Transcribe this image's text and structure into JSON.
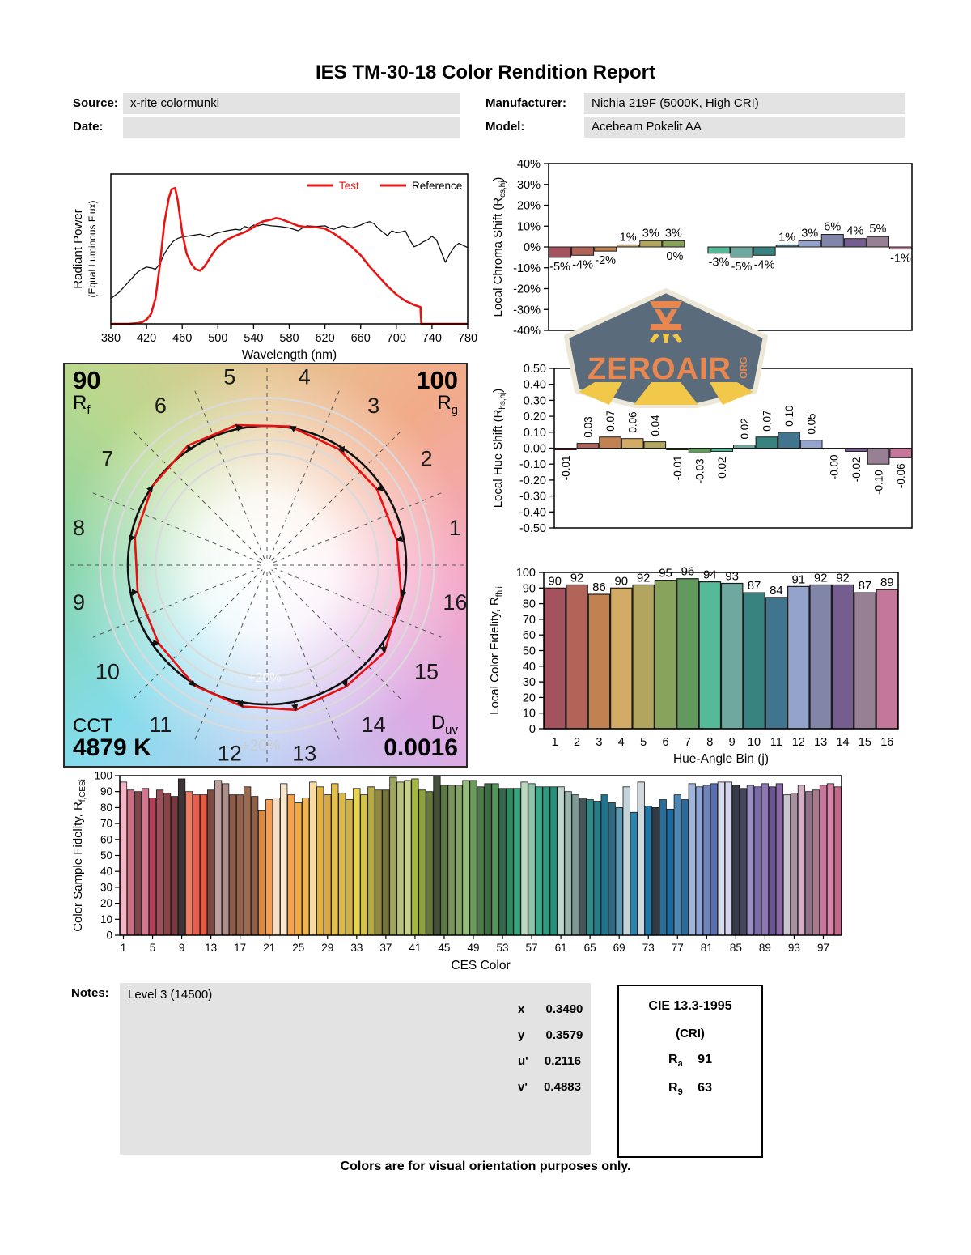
{
  "report": {
    "title": "IES TM-30-18 Color Rendition Report",
    "source_label": "Source:",
    "source_value": "x-rite colormunki",
    "date_label": "Date:",
    "date_value": "",
    "manufacturer_label": "Manufacturer:",
    "manufacturer_value": "Nichia 219F (5000K, High CRI)",
    "model_label": "Model:",
    "model_value": "Acebeam Pokelit AA",
    "notes_label": "Notes:",
    "notes_value": "Level 3 (14500)",
    "footer": "Colors are for visual orientation purposes only."
  },
  "watermark": {
    "name": "ZEROAIR",
    "suffix": "ORG",
    "badge_bg": "#5a6b7c",
    "text_color": "#e8874f",
    "ray_color": "#f2c84b",
    "border_color": "#ece7d6"
  },
  "chromaticity": {
    "rows": [
      {
        "label": "x",
        "value": "0.3490"
      },
      {
        "label": "y",
        "value": "0.3579"
      },
      {
        "label": "u'",
        "value": "0.2116"
      },
      {
        "label": "v'",
        "value": "0.4883"
      }
    ]
  },
  "cie_box": {
    "title": "CIE 13.3-1995",
    "subtitle": "(CRI)",
    "ra_label": "R",
    "ra_sub": "a",
    "ra_value": "91",
    "r9_label": "R",
    "r9_sub": "9",
    "r9_value": "63"
  },
  "bin_colors": [
    "#a4525e",
    "#b16457",
    "#c28150",
    "#d2ab66",
    "#b2a55f",
    "#87a35c",
    "#629a5e",
    "#55ba97",
    "#6fa89f",
    "#38827f",
    "#41748e",
    "#94a3cb",
    "#8185a8",
    "#765d90",
    "#977f94",
    "#c47799"
  ],
  "chart_data": [
    {
      "id": "spd",
      "type": "line",
      "xlabel": "Wavelength (nm)",
      "ylabel": "Radiant Power",
      "ylabel2": "(Equal Luminous Flux)",
      "xlim": [
        380,
        780
      ],
      "xticks": [
        380,
        420,
        460,
        500,
        540,
        580,
        620,
        660,
        700,
        740,
        780
      ],
      "legend_color_test": "#e81313",
      "legend_color_ref_text": "#000000",
      "series": [
        {
          "name": "Reference",
          "color": "#111111",
          "width": 1.3,
          "points": [
            [
              380,
              0.18
            ],
            [
              390,
              0.23
            ],
            [
              400,
              0.3
            ],
            [
              410,
              0.37
            ],
            [
              415,
              0.39
            ],
            [
              420,
              0.405
            ],
            [
              425,
              0.4
            ],
            [
              430,
              0.39
            ],
            [
              435,
              0.43
            ],
            [
              440,
              0.5
            ],
            [
              445,
              0.55
            ],
            [
              450,
              0.59
            ],
            [
              455,
              0.61
            ],
            [
              460,
              0.62
            ],
            [
              470,
              0.63
            ],
            [
              480,
              0.64
            ],
            [
              485,
              0.63
            ],
            [
              490,
              0.62
            ],
            [
              495,
              0.64
            ],
            [
              500,
              0.65
            ],
            [
              510,
              0.665
            ],
            [
              520,
              0.675
            ],
            [
              525,
              0.67
            ],
            [
              530,
              0.695
            ],
            [
              535,
              0.685
            ],
            [
              540,
              0.705
            ],
            [
              545,
              0.7
            ],
            [
              550,
              0.71
            ],
            [
              555,
              0.705
            ],
            [
              560,
              0.7
            ],
            [
              570,
              0.695
            ],
            [
              580,
              0.685
            ],
            [
              585,
              0.675
            ],
            [
              590,
              0.665
            ],
            [
              595,
              0.685
            ],
            [
              600,
              0.7
            ],
            [
              610,
              0.695
            ],
            [
              620,
              0.7
            ],
            [
              625,
              0.685
            ],
            [
              630,
              0.675
            ],
            [
              635,
              0.69
            ],
            [
              640,
              0.7
            ],
            [
              645,
              0.69
            ],
            [
              650,
              0.685
            ],
            [
              655,
              0.695
            ],
            [
              660,
              0.705
            ],
            [
              665,
              0.72
            ],
            [
              670,
              0.73
            ],
            [
              675,
              0.715
            ],
            [
              680,
              0.68
            ],
            [
              685,
              0.655
            ],
            [
              690,
              0.63
            ],
            [
              695,
              0.665
            ],
            [
              700,
              0.65
            ],
            [
              705,
              0.655
            ],
            [
              710,
              0.665
            ],
            [
              715,
              0.6
            ],
            [
              720,
              0.55
            ],
            [
              725,
              0.565
            ],
            [
              730,
              0.585
            ],
            [
              735,
              0.6
            ],
            [
              740,
              0.625
            ],
            [
              745,
              0.6
            ],
            [
              750,
              0.52
            ],
            [
              755,
              0.44
            ],
            [
              760,
              0.5
            ],
            [
              765,
              0.55
            ],
            [
              770,
              0.575
            ],
            [
              775,
              0.56
            ],
            [
              780,
              0.545
            ]
          ]
        },
        {
          "name": "Test",
          "color": "#e81313",
          "width": 2.6,
          "points": [
            [
              380,
              0
            ],
            [
              400,
              0
            ],
            [
              410,
              0.005
            ],
            [
              415,
              0.012
            ],
            [
              420,
              0.03
            ],
            [
              425,
              0.07
            ],
            [
              430,
              0.18
            ],
            [
              435,
              0.42
            ],
            [
              440,
              0.72
            ],
            [
              445,
              0.9
            ],
            [
              448,
              0.96
            ],
            [
              452,
              0.97
            ],
            [
              455,
              0.88
            ],
            [
              460,
              0.65
            ],
            [
              465,
              0.5
            ],
            [
              470,
              0.43
            ],
            [
              475,
              0.39
            ],
            [
              480,
              0.38
            ],
            [
              485,
              0.41
            ],
            [
              490,
              0.46
            ],
            [
              495,
              0.51
            ],
            [
              500,
              0.55
            ],
            [
              510,
              0.6
            ],
            [
              520,
              0.63
            ],
            [
              530,
              0.655
            ],
            [
              540,
              0.69
            ],
            [
              545,
              0.715
            ],
            [
              550,
              0.73
            ],
            [
              560,
              0.745
            ],
            [
              565,
              0.755
            ],
            [
              570,
              0.75
            ],
            [
              580,
              0.725
            ],
            [
              590,
              0.7
            ],
            [
              600,
              0.69
            ],
            [
              610,
              0.69
            ],
            [
              620,
              0.68
            ],
            [
              630,
              0.645
            ],
            [
              640,
              0.6
            ],
            [
              650,
              0.55
            ],
            [
              660,
              0.49
            ],
            [
              670,
              0.41
            ],
            [
              680,
              0.34
            ],
            [
              690,
              0.27
            ],
            [
              700,
              0.21
            ],
            [
              710,
              0.165
            ],
            [
              720,
              0.135
            ],
            [
              727,
              0.12
            ],
            [
              728,
              0
            ],
            [
              780,
              0
            ]
          ]
        }
      ]
    },
    {
      "id": "chroma_shift",
      "type": "bar",
      "ylabel_parts": {
        "pre": "Local Chroma Shift (R",
        "sub": "cs,hj",
        "post": ")"
      },
      "ylim": [
        -40,
        40
      ],
      "ytick_step": 10,
      "values_pct": [
        -5,
        -4,
        -2,
        1,
        3,
        3,
        0,
        -3,
        -5,
        -4,
        1,
        3,
        6,
        4,
        5,
        -1
      ],
      "labels": [
        "-5%",
        "-4%",
        "-2%",
        "1%",
        "3%",
        "3%",
        "0%",
        "-3%",
        "-5%",
        "-4%",
        "1%",
        "3%",
        "6%",
        "4%",
        "5%",
        "-1%"
      ]
    },
    {
      "id": "hue_shift",
      "type": "bar",
      "ylabel_parts": {
        "pre": "Local Hue Shift (R",
        "sub": "hs,hj",
        "post": ")"
      },
      "ylim": [
        -0.5,
        0.5
      ],
      "ytick_step": 0.1,
      "values": [
        -0.01,
        0.03,
        0.07,
        0.06,
        0.04,
        -0.01,
        -0.03,
        -0.02,
        0.02,
        0.07,
        0.1,
        0.05,
        -0.005,
        -0.02,
        -0.1,
        -0.06
      ],
      "labels": [
        "-0.01",
        "0.03",
        "0.07",
        "0.06",
        "0.04",
        "-0.01",
        "-0.03",
        "-0.02",
        "0.02",
        "0.07",
        "0.10",
        "0.05",
        "-0.00",
        "-0.02",
        "-0.10",
        "-0.06"
      ]
    },
    {
      "id": "local_fidelity",
      "type": "bar",
      "ylabel_parts": {
        "pre": "Local Color Fidelity, R",
        "sub": "fh,i",
        "post": ""
      },
      "xlabel": "Hue-Angle Bin (j)",
      "ylim": [
        0,
        100
      ],
      "ytick_step": 10,
      "categories": [
        1,
        2,
        3,
        4,
        5,
        6,
        7,
        8,
        9,
        10,
        11,
        12,
        13,
        14,
        15,
        16
      ],
      "values": [
        90,
        92,
        86,
        90,
        92,
        95,
        96,
        94,
        93,
        87,
        84,
        91,
        92,
        92,
        87,
        89
      ]
    },
    {
      "id": "cvg",
      "type": "color_vector_graphic",
      "rf": "90",
      "rf_label": "R",
      "rf_sub": "f",
      "rg": "100",
      "rg_label": "R",
      "rg_sub": "g",
      "cct_label": "CCT",
      "cct": "4879 K",
      "duv_label": "D",
      "duv_sub": "uv",
      "duv": "0.0016",
      "ring_labels": [
        "+20%",
        "+20%"
      ],
      "bin_numbers": [
        1,
        2,
        3,
        4,
        5,
        6,
        7,
        8,
        9,
        10,
        11,
        12,
        13,
        14,
        15,
        16
      ],
      "chroma_shift_pct": [
        -5,
        -4,
        -2,
        1,
        3,
        3,
        0,
        -3,
        -5,
        -4,
        1,
        3,
        6,
        4,
        5,
        -1
      ],
      "hue_shift": [
        -0.01,
        0.03,
        0.07,
        0.06,
        0.04,
        -0.01,
        -0.03,
        -0.02,
        0.02,
        0.07,
        0.1,
        0.05,
        0,
        -0.02,
        -0.1,
        -0.06
      ]
    },
    {
      "id": "ces",
      "type": "bar",
      "ylabel_parts": {
        "pre": "Color Sample Fidelity, R",
        "sub": "f,CESi",
        "post": ""
      },
      "xlabel": "CES Color",
      "ylim": [
        0,
        100
      ],
      "ytick_step": 10,
      "xtick_labels": [
        1,
        5,
        9,
        13,
        17,
        21,
        25,
        29,
        33,
        37,
        41,
        45,
        49,
        53,
        57,
        61,
        65,
        69,
        73,
        77,
        81,
        85,
        89,
        93,
        97
      ],
      "values": [
        96,
        91,
        90,
        92,
        86,
        91,
        89,
        87,
        98,
        90,
        88,
        88,
        91,
        97,
        95,
        88,
        88,
        93,
        87,
        78,
        85,
        86,
        95,
        88,
        83,
        86,
        96,
        93,
        88,
        95,
        89,
        85,
        92,
        88,
        93,
        91,
        91,
        99,
        96,
        97,
        98,
        91,
        90,
        100,
        94,
        94,
        94,
        97,
        97,
        93,
        95,
        95,
        92,
        92,
        92,
        96,
        95,
        93,
        93,
        93,
        93,
        90,
        88,
        86,
        85,
        84,
        88,
        83,
        80,
        93,
        77,
        96,
        81,
        80,
        85,
        79,
        88,
        85,
        95,
        93,
        94,
        95,
        96,
        96,
        94,
        92,
        94,
        93,
        95,
        93,
        95,
        88,
        89,
        94,
        90,
        91,
        94,
        95,
        93
      ],
      "colors": [
        "#f2b6c6",
        "#ca6e84",
        "#7d4349",
        "#d4768f",
        "#b23f58",
        "#9d4f5a",
        "#8c4347",
        "#75393f",
        "#3f3538",
        "#f07a64",
        "#ea5c4b",
        "#e65847",
        "#7d4b42",
        "#bf9f9b",
        "#ab8f88",
        "#8c5b49",
        "#97624c",
        "#9c6a4f",
        "#8c604a",
        "#db8a41",
        "#f69d52",
        "#f6dfc2",
        "#f8e7cc",
        "#f6a24c",
        "#f1a83f",
        "#eeb457",
        "#f8daa2",
        "#e2b143",
        "#d9a83f",
        "#e3c04e",
        "#d9b94a",
        "#cdb048",
        "#e8d34f",
        "#d4c24a",
        "#b5a93f",
        "#8f8a3d",
        "#74753c",
        "#9ea55c",
        "#b9c37c",
        "#c7d18a",
        "#a4b83f",
        "#8da23b",
        "#66793a",
        "#44503a",
        "#5b7a44",
        "#77945a",
        "#85a468",
        "#97bc7e",
        "#6b9c59",
        "#4d7a48",
        "#3f6b44",
        "#57935f",
        "#35684a",
        "#2f8a63",
        "#35a57d",
        "#bcd9c0",
        "#8fc3a8",
        "#3aa98c",
        "#2d9a80",
        "#27907a",
        "#bfd6cd",
        "#9ab5ad",
        "#7d9a94",
        "#46555a",
        "#2f8a8c",
        "#267d85",
        "#1f7590",
        "#2f6a80",
        "#5b99b5",
        "#c3d3da",
        "#2a84ad",
        "#cfd9dd",
        "#2277a8",
        "#333b44",
        "#2a6e99",
        "#1f6a9c",
        "#4a87b5",
        "#2a6a9c",
        "#9fb4d9",
        "#8fa3d4",
        "#6f83bf",
        "#5a6eb2",
        "#d9dcee",
        "#d4d4ec",
        "#363a4a",
        "#44475c",
        "#9a8fc3",
        "#7a6aa8",
        "#8f77b5",
        "#6a5590",
        "#8a68a8",
        "#c9c4cf",
        "#a8909f",
        "#d4aec4",
        "#8f7288",
        "#a8798f",
        "#c9759c",
        "#d684a8",
        "#c4688a"
      ]
    }
  ]
}
